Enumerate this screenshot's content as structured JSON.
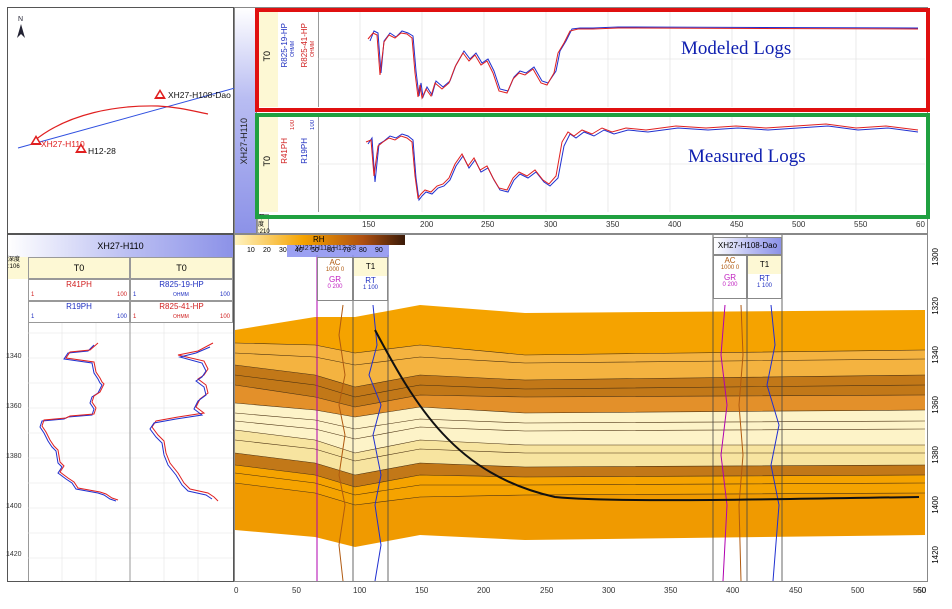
{
  "map": {
    "north_label": "N",
    "wells": [
      "XH27-H108-Dao",
      "XH27-H110",
      "H12-28"
    ]
  },
  "top_section": {
    "well_label": "XH27-H110",
    "track1_title": "T0",
    "track2_curves": [
      "R825-19-HP",
      "R825-41-HP"
    ],
    "track2_units": "OHMM",
    "track2_scale_max": "100",
    "row2_curves": [
      "R41PH",
      "R19PH"
    ],
    "row2_scale_max": "100",
    "depth_tag": "深度\n:210",
    "modeled_label": "Modeled Logs",
    "measured_label": "Measured Logs",
    "x_ticks": [
      "150",
      "200",
      "250",
      "300",
      "350",
      "400",
      "450",
      "500",
      "550",
      "60"
    ]
  },
  "left_well": {
    "title": "XH27-H110",
    "depth_header": "深度\n:106",
    "track1_title": "T0",
    "track2_title": "T0",
    "r41_label": "R41PH",
    "r41_min": "1",
    "r41_max": "100",
    "r19_label": "R19PH",
    "r19_min": "1",
    "r19_max": "100",
    "r825_19_label": "R825-19-HP",
    "r825_41_label": "R825-41-HP",
    "units": "OHMM",
    "depth_ticks": [
      "1340",
      "1360",
      "1380",
      "1400",
      "1420"
    ]
  },
  "section": {
    "legend_title": "RH",
    "legend_ticks": [
      "10",
      "20",
      "30",
      "40",
      "50",
      "60",
      "70",
      "80",
      "90"
    ],
    "legend_overlay": "XH27-H110 H12-28",
    "well1": {
      "ac_label": "AC",
      "ac_scale": "1000    0",
      "gr_label": "GR",
      "gr_scale": "0   200",
      "t1_label": "T1",
      "rt_label": "RT",
      "rt_scale": "1   100"
    },
    "well2": {
      "title": "XH27-H108-Dao",
      "ac_label": "AC",
      "ac_scale": "1000    0",
      "gr_label": "GR",
      "gr_scale": "0   200",
      "t1_label": "T1",
      "rt_label": "RT",
      "rt_scale": "1   100"
    },
    "depth_ticks": [
      "1300",
      "1320",
      "1340",
      "1360",
      "1380",
      "1400",
      "1420"
    ],
    "x_ticks": [
      "0",
      "50",
      "100",
      "150",
      "200",
      "250",
      "300",
      "350",
      "400",
      "450",
      "500",
      "550",
      "60"
    ]
  },
  "colors": {
    "modeled_box": "#e01010",
    "measured_box": "#20a040",
    "label_blue": "#1020b0",
    "red_curve": "#e02020",
    "blue_curve": "#2030d0",
    "layer_orange": "#f5a300",
    "layer_dark": "#b86a10",
    "layer_cream": "#fdf3c8"
  }
}
